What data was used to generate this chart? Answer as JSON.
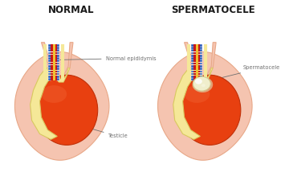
{
  "background_color": "#ffffff",
  "title_left": "NORMAL",
  "title_right": "SPERMATOCELE",
  "title_fontsize": 8.5,
  "title_fontweight": "bold",
  "label_normal_epididymis": "Normal epididymis",
  "label_testicle": "Testicle",
  "label_spermatocele": "Spermatocele",
  "skin_color": "#f5c4b0",
  "skin_edge": "#e8a888",
  "testicle_color": "#e84010",
  "tunica_color": "#f5e898",
  "tunica_edge": "#d8c860",
  "epididymis_blue": "#2858b8",
  "epididymis_red": "#c81818",
  "epididymis_yellow": "#f0c030",
  "spermatocele_color": "#f0eecc",
  "spermatocele_edge": "#d0cc90",
  "annotation_color": "#707070",
  "annotation_fontsize": 4.8
}
